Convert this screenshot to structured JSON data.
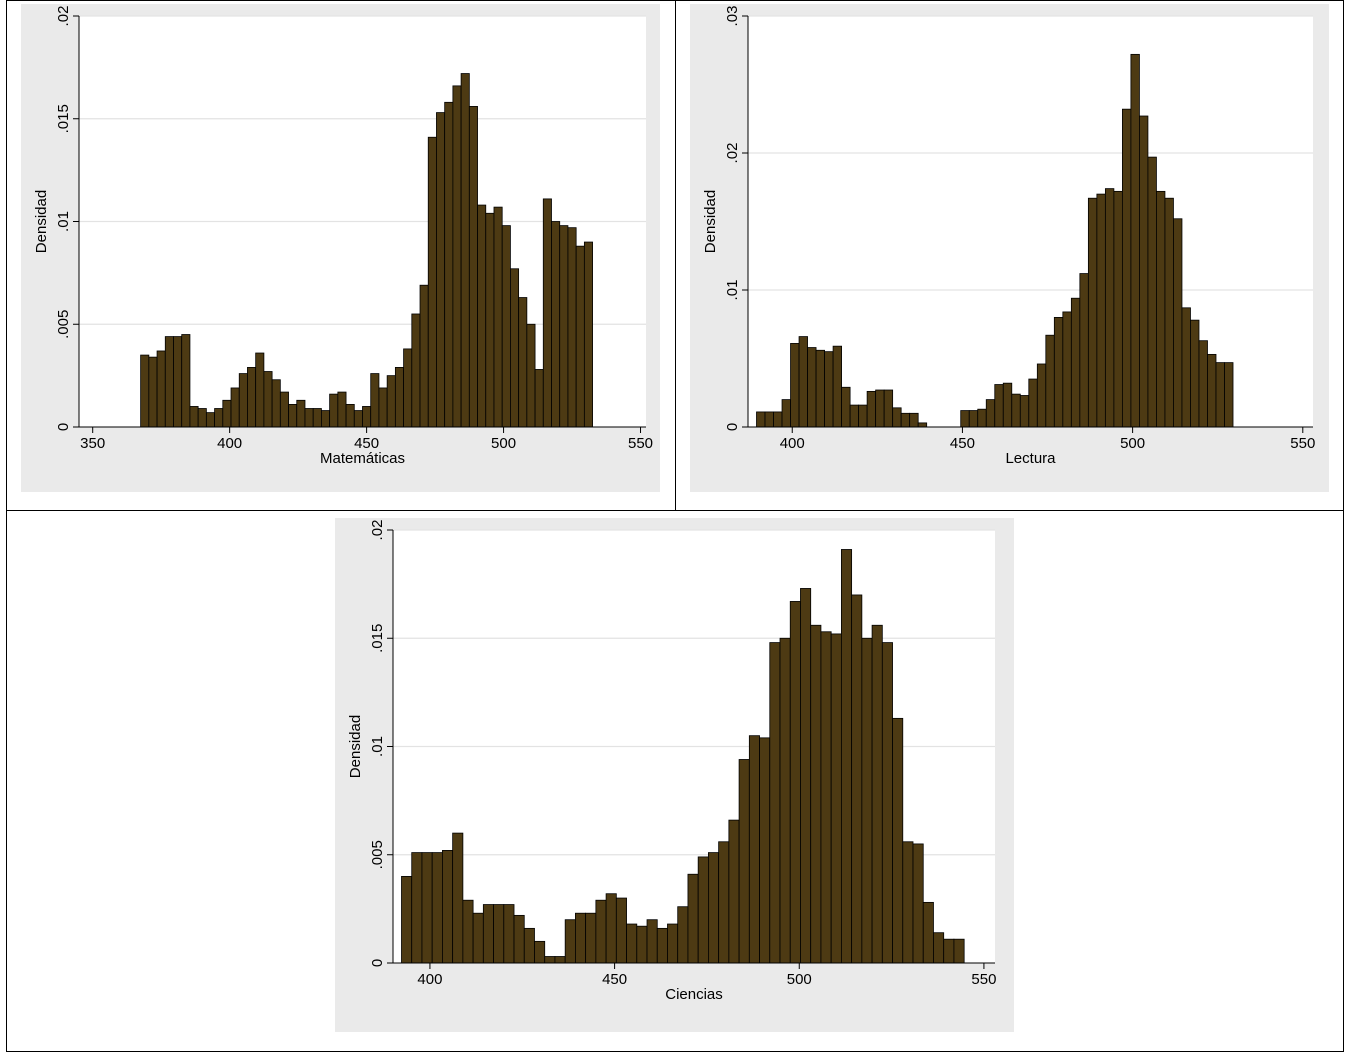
{
  "chart_data": [
    {
      "type": "bar",
      "xlabel": "Matemáticas",
      "ylabel": "Densidad",
      "xlim": [
        345,
        552
      ],
      "ylim": [
        0,
        0.02
      ],
      "xticks": [
        {
          "v": 350,
          "label": "350"
        },
        {
          "v": 400,
          "label": "400"
        },
        {
          "v": 450,
          "label": "450"
        },
        {
          "v": 500,
          "label": "500"
        },
        {
          "v": 550,
          "label": "550"
        }
      ],
      "yticks": [
        {
          "v": 0,
          "label": "0"
        },
        {
          "v": 0.005,
          "label": ".005"
        },
        {
          "v": 0.01,
          "label": ".01"
        },
        {
          "v": 0.015,
          "label": ".015"
        },
        {
          "v": 0.02,
          "label": ".02"
        }
      ],
      "grid": "horizontal",
      "bar_color": "#4d3a13",
      "bin_start": 367.5,
      "bin_width": 3.0,
      "values": [
        0.0035,
        0.0034,
        0.0037,
        0.0044,
        0.0044,
        0.0045,
        0.001,
        0.0009,
        0.0007,
        0.0009,
        0.0013,
        0.0019,
        0.0026,
        0.0029,
        0.0036,
        0.0027,
        0.0023,
        0.0017,
        0.0011,
        0.0013,
        0.0009,
        0.0009,
        0.0008,
        0.0016,
        0.0017,
        0.0011,
        0.0008,
        0.001,
        0.0026,
        0.0019,
        0.0025,
        0.0029,
        0.0038,
        0.0055,
        0.0069,
        0.0141,
        0.0153,
        0.0158,
        0.0166,
        0.0172,
        0.0156,
        0.0108,
        0.0104,
        0.0107,
        0.0098,
        0.0077,
        0.0063,
        0.005,
        0.0028,
        0.0111,
        0.01,
        0.0098,
        0.0097,
        0.0088,
        0.009
      ]
    },
    {
      "type": "bar",
      "xlabel": "Lectura",
      "ylabel": "Densidad",
      "xlim": [
        387,
        553
      ],
      "ylim": [
        0,
        0.03
      ],
      "xticks": [
        {
          "v": 400,
          "label": "400"
        },
        {
          "v": 450,
          "label": "450"
        },
        {
          "v": 500,
          "label": "500"
        },
        {
          "v": 550,
          "label": "550"
        }
      ],
      "yticks": [
        {
          "v": 0,
          "label": "0"
        },
        {
          "v": 0.01,
          "label": ".01"
        },
        {
          "v": 0.02,
          "label": ".02"
        },
        {
          "v": 0.03,
          "label": ".03"
        }
      ],
      "grid": "horizontal",
      "bar_color": "#4d3a13",
      "bin_start": 389.5,
      "bin_width": 2.5,
      "values": [
        0.0011,
        0.0011,
        0.0011,
        0.002,
        0.0061,
        0.0066,
        0.0058,
        0.0056,
        0.0055,
        0.0059,
        0.0029,
        0.0016,
        0.0016,
        0.0026,
        0.0027,
        0.0027,
        0.0014,
        0.001,
        0.001,
        0.0003,
        0,
        0,
        0,
        0,
        0.0012,
        0.0012,
        0.0013,
        0.002,
        0.0031,
        0.0032,
        0.0024,
        0.0023,
        0.0035,
        0.0046,
        0.0067,
        0.008,
        0.0084,
        0.0094,
        0.0112,
        0.0167,
        0.017,
        0.0174,
        0.0172,
        0.0232,
        0.0272,
        0.0227,
        0.0197,
        0.0172,
        0.0167,
        0.0152,
        0.0087,
        0.0078,
        0.0063,
        0.0053,
        0.0047,
        0.0047
      ]
    },
    {
      "type": "bar",
      "xlabel": "Ciencias",
      "ylabel": "Densidad",
      "xlim": [
        390,
        553
      ],
      "ylim": [
        0,
        0.02
      ],
      "xticks": [
        {
          "v": 400,
          "label": "400"
        },
        {
          "v": 450,
          "label": "450"
        },
        {
          "v": 500,
          "label": "500"
        },
        {
          "v": 550,
          "label": "550"
        }
      ],
      "yticks": [
        {
          "v": 0,
          "label": "0"
        },
        {
          "v": 0.005,
          "label": ".005"
        },
        {
          "v": 0.01,
          "label": ".01"
        },
        {
          "v": 0.015,
          "label": ".015"
        },
        {
          "v": 0.02,
          "label": ".02"
        }
      ],
      "grid": "horizontal",
      "bar_color": "#4d3a13",
      "bin_start": 392.3,
      "bin_width": 2.77,
      "values": [
        0.004,
        0.0051,
        0.0051,
        0.0051,
        0.0052,
        0.006,
        0.0029,
        0.0023,
        0.0027,
        0.0027,
        0.0027,
        0.0022,
        0.0016,
        0.001,
        0.0003,
        0.0003,
        0.002,
        0.0023,
        0.0023,
        0.0029,
        0.0032,
        0.003,
        0.0018,
        0.0017,
        0.002,
        0.0016,
        0.0018,
        0.0026,
        0.0041,
        0.0049,
        0.0051,
        0.0056,
        0.0066,
        0.0094,
        0.0105,
        0.0104,
        0.0148,
        0.015,
        0.0167,
        0.0173,
        0.0156,
        0.0153,
        0.0152,
        0.0191,
        0.017,
        0.015,
        0.0156,
        0.0148,
        0.0113,
        0.0056,
        0.0055,
        0.0028,
        0.0014,
        0.0011,
        0.0011
      ]
    }
  ]
}
